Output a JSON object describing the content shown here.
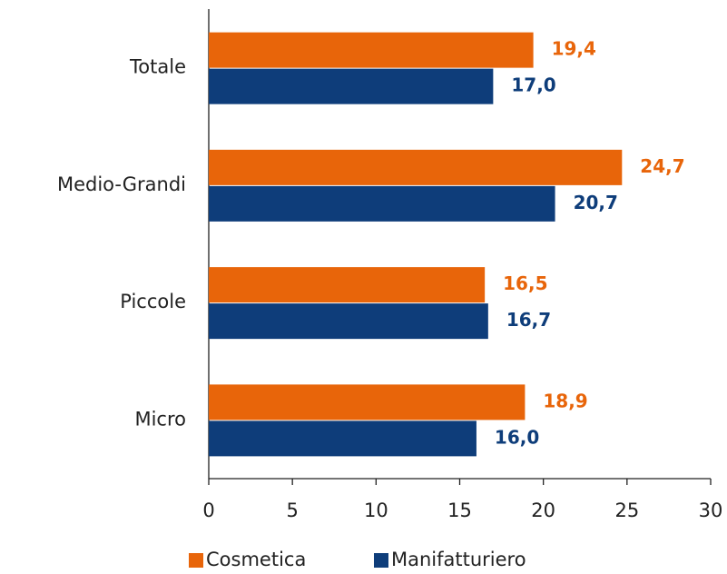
{
  "chart_data": {
    "type": "bar",
    "orientation": "horizontal",
    "categories": [
      "Totale",
      "Medio-Grandi",
      "Piccole",
      "Micro"
    ],
    "series": [
      {
        "name": "Cosmetica",
        "color": "#e8650a",
        "values": [
          19.4,
          24.7,
          16.5,
          18.9
        ],
        "value_labels": [
          "19,4",
          "24,7",
          "16,5",
          "18,9"
        ]
      },
      {
        "name": "Manifatturiero",
        "color": "#0e3d7a",
        "values": [
          17.0,
          20.7,
          16.7,
          16.0
        ],
        "value_labels": [
          "17,0",
          "20,7",
          "16,7",
          "16,0"
        ]
      }
    ],
    "xlim": [
      0,
      30
    ],
    "xticks": [
      0,
      5,
      10,
      15,
      20,
      25,
      30
    ],
    "grid": false,
    "legend": "bottom"
  }
}
